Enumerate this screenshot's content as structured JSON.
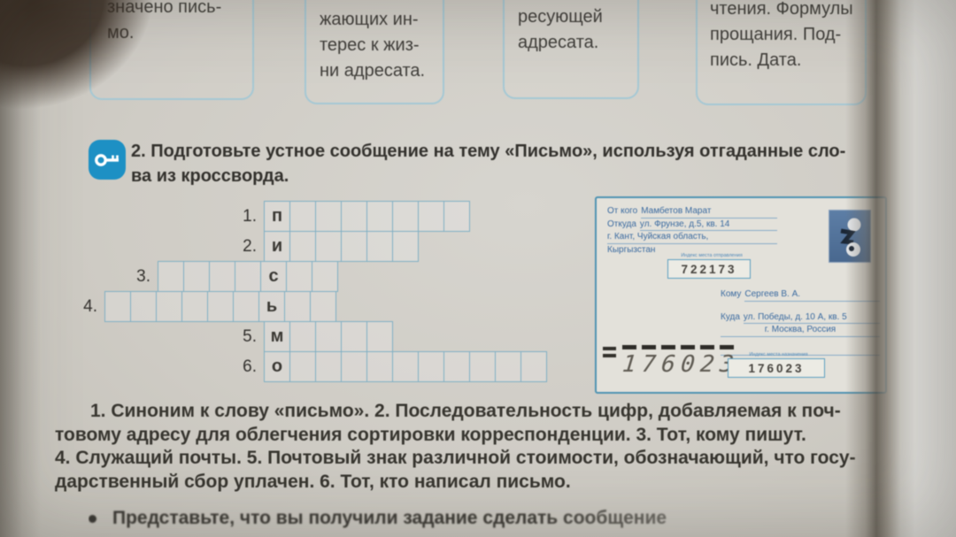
{
  "page": {
    "top_boxes": [
      "значено пись-\nмо.",
      "жающих ин-\nтерес к жиз-\nни адресата.",
      "ресующей\nадресата.",
      "чтения. Формулы\nпрощания. Под-\nпись. Дата."
    ],
    "exercise": {
      "text": "2. Подготовьте устное сообщение на тему «Письмо», используя отгаданные сло-\nва из кроссворда."
    },
    "crossword": {
      "rows": [
        {
          "num": "1.",
          "letter": "п",
          "before": 0,
          "after": 7
        },
        {
          "num": "2.",
          "letter": "и",
          "before": 0,
          "after": 5
        },
        {
          "num": "3.",
          "letter": "с",
          "before": 4,
          "after": 2
        },
        {
          "num": "4.",
          "letter": "ь",
          "before": 6,
          "after": 2
        },
        {
          "num": "5.",
          "letter": "м",
          "before": 0,
          "after": 4
        },
        {
          "num": "6.",
          "letter": "о",
          "before": 0,
          "after": 10
        }
      ]
    },
    "envelope": {
      "from_label": "От кого",
      "from_value": "Мамбетов Марат",
      "from_where_label": "Откуда",
      "from_where_value": "ул. Фрунзе, д.5, кв. 14",
      "from_line3": "г. Кант, Чуйская область,",
      "from_line4": "Кыргызстан",
      "origin_index_label": "Индекс места отправления",
      "origin_index_value": "722173",
      "to_label": "Кому",
      "to_value": "Сергеев В. А.",
      "to_where_label": "Куда",
      "to_where_value": "ул. Победы, д. 10 А, кв. 5",
      "to_line3": "г. Москва, Россия",
      "dest_index_label": "Индекс места назначения",
      "dest_index_value": "176023",
      "handwritten_index": "176023"
    },
    "clues": "1. Синоним к слову «письмо». 2. Последовательность цифр, добавляемая к поч-\nтовому адресу для облегчения сортировки корреспонденции. 3. Тот, кому пишут.\n4. Служащий почты. 5. Почтовый знак различной стоимости, обозначающий, что госу-\nдарственный сбор уплачен. 6. Тот, кто написал письмо.",
    "bottom_note": "Представьте, что вы получили задание сделать сообщение"
  },
  "colors": {
    "accent_blue": "#1d90c4",
    "crossword_grid": "#7fafc3",
    "card_border": "#a5c8d4",
    "envelope_border": "#4f93b2",
    "envelope_text": "#3a6aa0",
    "stamp_blue": "#5d7ea6",
    "paper": "#cfccc5"
  }
}
